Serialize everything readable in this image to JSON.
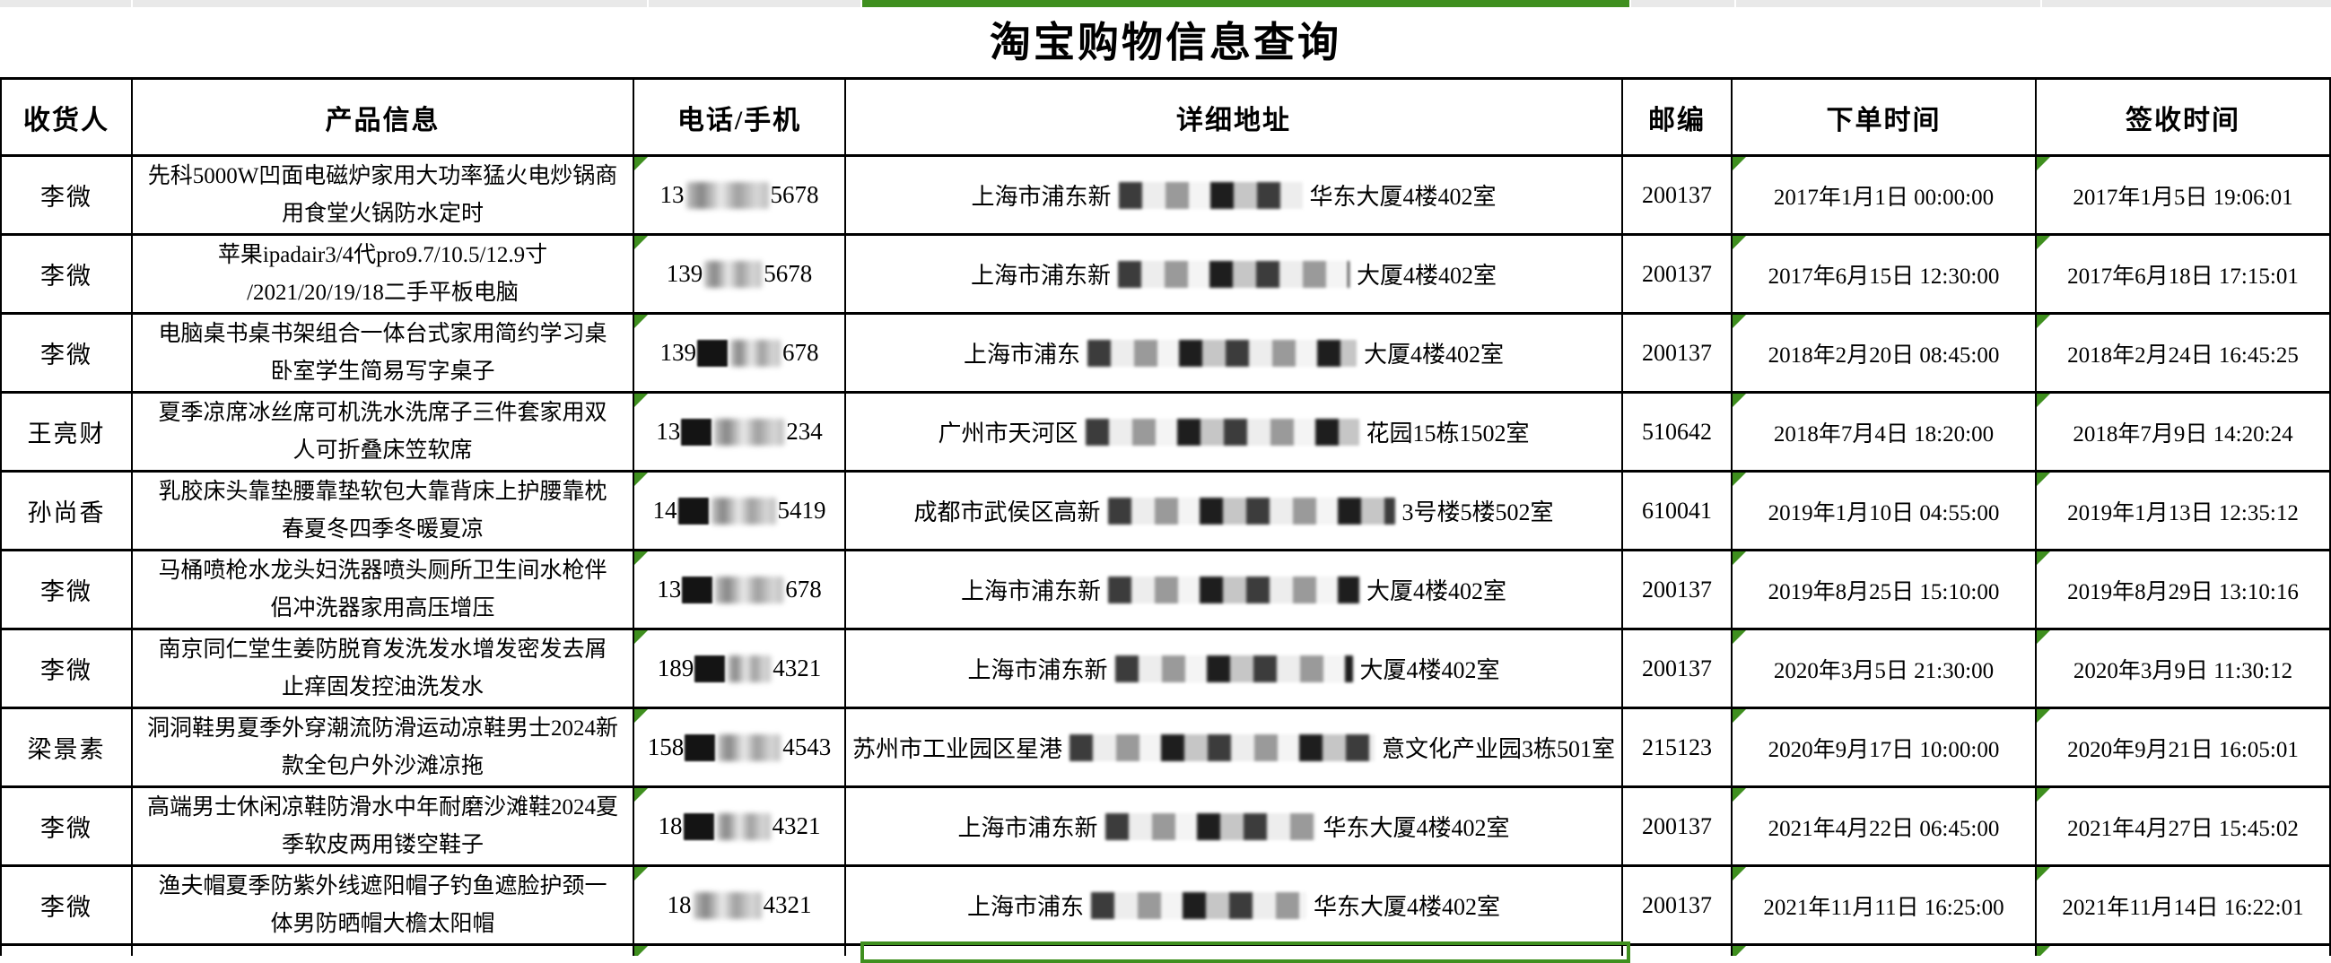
{
  "colors": {
    "accent_green": "#3f8f1f",
    "grid_black": "#000000",
    "strip_gray": "#e9e9e9"
  },
  "title": "淘宝购物信息查询",
  "table": {
    "headers": [
      "收货人",
      "产品信息",
      "电话/手机",
      "详细地址",
      "邮编",
      "下单时间",
      "签收时间"
    ],
    "indicator_note": "green-error-triangle on phone, order-time and sign-time cells",
    "rows": [
      {
        "recipient": "李微",
        "product_line1": "先科5000W凹面电磁炉家用大功率猛火电炒锅商",
        "product_line2": "用食堂火锅防水定时",
        "phone_prefix": "13",
        "phone_suffix": "5678",
        "phone_dark": false,
        "phone_redact_w": 92,
        "addr_prefix": "上海市浦东新",
        "addr_suffix": "华东大厦4楼402室",
        "addr_redact_w": 205,
        "zip": "200137",
        "order_time": "2017年1月1日 00:00:00",
        "sign_time": "2017年1月5日 19:06:01"
      },
      {
        "recipient": "李微",
        "product_line1": "苹果ipadair3/4代pro9.7/10.5/12.9寸",
        "product_line2": "/2021/20/19/18二手平板电脑",
        "phone_prefix": "139",
        "phone_suffix": "5678",
        "phone_dark": false,
        "phone_redact_w": 64,
        "addr_prefix": "上海市浦东新",
        "addr_suffix": "大厦4楼402室",
        "addr_redact_w": 258,
        "zip": "200137",
        "order_time": "2017年6月15日 12:30:00",
        "sign_time": "2017年6月18日 17:15:01"
      },
      {
        "recipient": "李微",
        "product_line1": "电脑桌书桌书架组合一体台式家用简约学习桌",
        "product_line2": "卧室学生简易写字桌子",
        "phone_prefix": "139",
        "phone_suffix": "678",
        "phone_dark": true,
        "phone_redact_w": 56,
        "addr_prefix": "上海市浦东",
        "addr_suffix": "大厦4楼402室",
        "addr_redact_w": 300,
        "zip": "200137",
        "order_time": "2018年2月20日 08:45:00",
        "sign_time": "2018年2月24日 16:45:25"
      },
      {
        "recipient": "王亮财",
        "product_line1": "夏季凉席冰丝席可机洗水洗席子三件套家用双",
        "product_line2": "人可折叠床笠软席",
        "phone_prefix": "13",
        "phone_suffix": "234",
        "phone_dark": true,
        "phone_redact_w": 78,
        "addr_prefix": "广州市天河区",
        "addr_suffix": "花园15栋1502室",
        "addr_redact_w": 305,
        "zip": "510642",
        "order_time": "2018年7月4日 18:20:00",
        "sign_time": "2018年7月9日 14:20:24"
      },
      {
        "recipient": "孙尚香",
        "product_line1": "乳胶床头靠垫腰靠垫软包大靠背床上护腰靠枕",
        "product_line2": "春夏冬四季冬暖夏凉",
        "phone_prefix": "14",
        "phone_suffix": "5419",
        "phone_dark": true,
        "phone_redact_w": 72,
        "addr_prefix": "成都市武侯区高新",
        "addr_suffix": "3号楼5楼502室",
        "addr_redact_w": 320,
        "zip": "610041",
        "order_time": "2019年1月10日 04:55:00",
        "sign_time": "2019年1月13日 12:35:12"
      },
      {
        "recipient": "李微",
        "product_line1": "马桶喷枪水龙头妇洗器喷头厕所卫生间水枪伴",
        "product_line2": "侣冲洗器家用高压增压",
        "phone_prefix": "13",
        "phone_suffix": "678",
        "phone_dark": true,
        "phone_redact_w": 76,
        "addr_prefix": "上海市浦东新",
        "addr_suffix": "大厦4楼402室",
        "addr_redact_w": 280,
        "zip": "200137",
        "order_time": "2019年8月25日 15:10:00",
        "sign_time": "2019年8月29日 13:10:16"
      },
      {
        "recipient": "李微",
        "product_line1": "南京同仁堂生姜防脱育发洗发水增发密发去屑",
        "product_line2": "止痒固发控油洗发水",
        "phone_prefix": "189",
        "phone_suffix": "4321",
        "phone_dark": true,
        "phone_redact_w": 48,
        "addr_prefix": "上海市浦东新",
        "addr_suffix": "大厦4楼402室",
        "addr_redact_w": 265,
        "zip": "200137",
        "order_time": "2020年3月5日 21:30:00",
        "sign_time": "2020年3月9日 11:30:12"
      },
      {
        "recipient": "梁景素",
        "product_line1": "洞洞鞋男夏季外穿潮流防滑运动凉鞋男士2024新",
        "product_line2": "款全包户外沙滩凉拖",
        "phone_prefix": "158",
        "phone_suffix": "4543",
        "phone_dark": true,
        "phone_redact_w": 70,
        "addr_prefix": "苏州市工业园区星港",
        "addr_suffix": "意文化产业园3栋501室",
        "addr_redact_w": 340,
        "zip": "215123",
        "order_time": "2020年9月17日 10:00:00",
        "sign_time": "2020年9月21日 16:05:01"
      },
      {
        "recipient": "李微",
        "product_line1": "高端男士休闲凉鞋防滑水中年耐磨沙滩鞋2024夏",
        "product_line2": "季软皮两用镂空鞋子",
        "phone_prefix": "18",
        "phone_suffix": "4321",
        "phone_dark": true,
        "phone_redact_w": 60,
        "addr_prefix": "上海市浦东新",
        "addr_suffix": "华东大厦4楼402室",
        "addr_redact_w": 235,
        "zip": "200137",
        "order_time": "2021年4月22日 06:45:00",
        "sign_time": "2021年4月27日 15:45:02"
      },
      {
        "recipient": "李微",
        "product_line1": "渔夫帽夏季防紫外线遮阳帽子钓鱼遮脸护颈一",
        "product_line2": "体男防晒帽大檐太阳帽",
        "phone_prefix": "18",
        "phone_suffix": "4321",
        "phone_dark": false,
        "phone_redact_w": 76,
        "addr_prefix": "上海市浦东",
        "addr_suffix": "华东大厦4楼402室",
        "addr_redact_w": 240,
        "zip": "200137",
        "order_time": "2021年11月11日 16:25:00",
        "sign_time": "2021年11月14日 16:22:01"
      }
    ]
  }
}
